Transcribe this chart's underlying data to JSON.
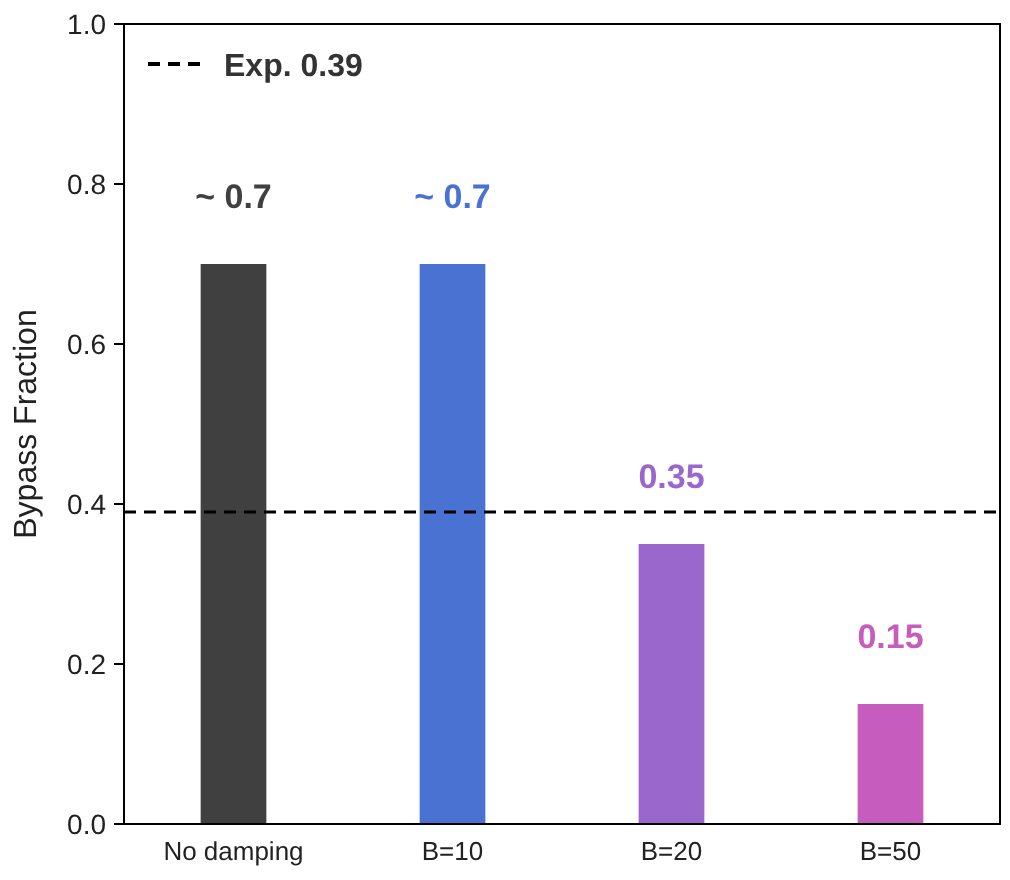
{
  "chart_data": {
    "type": "bar",
    "ylabel": "Bypass Fraction",
    "categories": [
      "No damping",
      "B=10",
      "B=20",
      "B=50"
    ],
    "values": [
      0.7,
      0.7,
      0.35,
      0.15
    ],
    "colors": [
      "#404040",
      "#4a72d2",
      "#9a68cc",
      "#c75cbf"
    ],
    "value_labels": [
      "~ 0.7",
      "~ 0.7",
      "0.35",
      "0.15"
    ],
    "ylim": [
      0,
      1
    ],
    "yticks": [
      {
        "value": 0,
        "label": "0.0"
      },
      {
        "value": 0.2,
        "label": "0.2"
      },
      {
        "value": 0.4,
        "label": "0.4"
      },
      {
        "value": 0.6,
        "label": "0.6"
      },
      {
        "value": 0.8,
        "label": "0.8"
      },
      {
        "value": 1,
        "label": "1.0"
      }
    ],
    "ref_lines": [
      {
        "axis": "y",
        "value": 0.39,
        "label": "Exp. 0.39",
        "color": "#000000",
        "line_style": "dashed"
      }
    ],
    "legend": "top left",
    "grid": false
  }
}
